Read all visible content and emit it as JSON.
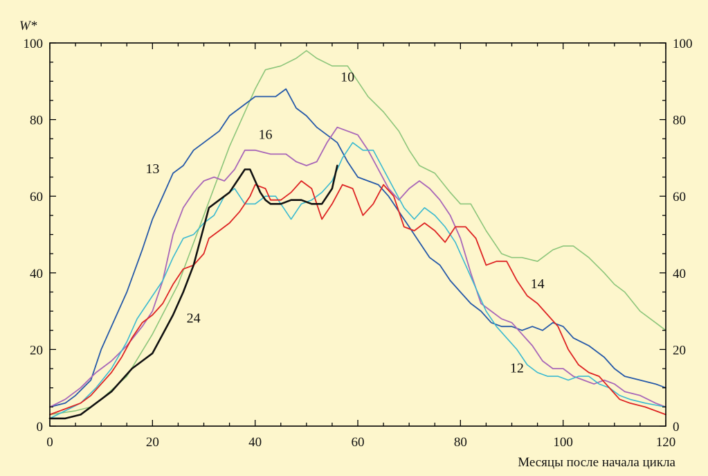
{
  "chart_data": {
    "type": "line",
    "xlabel": "Месяцы после начала цикла",
    "ylabel": "W*",
    "xlim": [
      0,
      120
    ],
    "ylim": [
      0,
      100
    ],
    "xticks": [
      0,
      20,
      40,
      60,
      80,
      100,
      120
    ],
    "yticks": [
      0,
      20,
      40,
      60,
      80,
      100
    ],
    "grid": false,
    "legend": "inline labels",
    "colors": {
      "background": "#fdf6cc",
      "axes": "#000000"
    },
    "series": [
      {
        "name": "10",
        "color": "#8cc57a",
        "width": 1.6,
        "label_at": [
          58,
          90
        ],
        "points": [
          [
            0,
            3
          ],
          [
            5,
            4
          ],
          [
            8,
            5
          ],
          [
            10,
            7
          ],
          [
            15,
            13
          ],
          [
            20,
            24
          ],
          [
            25,
            37
          ],
          [
            30,
            55
          ],
          [
            35,
            73
          ],
          [
            40,
            88
          ],
          [
            42,
            93
          ],
          [
            45,
            94
          ],
          [
            48,
            96
          ],
          [
            50,
            98
          ],
          [
            52,
            96
          ],
          [
            55,
            94
          ],
          [
            58,
            94
          ],
          [
            60,
            90
          ],
          [
            62,
            86
          ],
          [
            65,
            82
          ],
          [
            68,
            77
          ],
          [
            70,
            72
          ],
          [
            72,
            68
          ],
          [
            75,
            66
          ],
          [
            78,
            61
          ],
          [
            80,
            58
          ],
          [
            82,
            58
          ],
          [
            85,
            51
          ],
          [
            88,
            45
          ],
          [
            90,
            44
          ],
          [
            92,
            44
          ],
          [
            95,
            43
          ],
          [
            98,
            46
          ],
          [
            100,
            47
          ],
          [
            102,
            47
          ],
          [
            105,
            44
          ],
          [
            108,
            40
          ],
          [
            110,
            37
          ],
          [
            112,
            35
          ],
          [
            115,
            30
          ],
          [
            118,
            27
          ],
          [
            120,
            25
          ]
        ]
      },
      {
        "name": "13",
        "color": "#2458a8",
        "width": 1.8,
        "label_at": [
          20,
          66
        ],
        "points": [
          [
            0,
            5
          ],
          [
            3,
            6
          ],
          [
            5,
            8
          ],
          [
            8,
            12
          ],
          [
            10,
            20
          ],
          [
            12,
            26
          ],
          [
            15,
            35
          ],
          [
            18,
            46
          ],
          [
            20,
            54
          ],
          [
            22,
            60
          ],
          [
            24,
            66
          ],
          [
            26,
            68
          ],
          [
            28,
            72
          ],
          [
            30,
            74
          ],
          [
            33,
            77
          ],
          [
            35,
            81
          ],
          [
            38,
            84
          ],
          [
            40,
            86
          ],
          [
            42,
            86
          ],
          [
            44,
            86
          ],
          [
            46,
            88
          ],
          [
            48,
            83
          ],
          [
            50,
            81
          ],
          [
            52,
            78
          ],
          [
            54,
            76
          ],
          [
            56,
            74
          ],
          [
            58,
            69
          ],
          [
            60,
            65
          ],
          [
            62,
            64
          ],
          [
            64,
            63
          ],
          [
            66,
            60
          ],
          [
            68,
            56
          ],
          [
            70,
            52
          ],
          [
            72,
            48
          ],
          [
            74,
            44
          ],
          [
            76,
            42
          ],
          [
            78,
            38
          ],
          [
            80,
            35
          ],
          [
            82,
            32
          ],
          [
            84,
            30
          ],
          [
            86,
            27
          ],
          [
            88,
            26
          ],
          [
            90,
            26
          ],
          [
            92,
            25
          ],
          [
            94,
            26
          ],
          [
            96,
            25
          ],
          [
            98,
            27
          ],
          [
            100,
            26
          ],
          [
            102,
            23
          ],
          [
            105,
            21
          ],
          [
            108,
            18
          ],
          [
            110,
            15
          ],
          [
            112,
            13
          ],
          [
            115,
            12
          ],
          [
            118,
            11
          ],
          [
            120,
            10
          ]
        ]
      },
      {
        "name": "16",
        "color": "#a866b8",
        "width": 1.8,
        "label_at": [
          42,
          75
        ],
        "points": [
          [
            0,
            5
          ],
          [
            3,
            7
          ],
          [
            6,
            10
          ],
          [
            9,
            14
          ],
          [
            12,
            17
          ],
          [
            15,
            21
          ],
          [
            18,
            26
          ],
          [
            20,
            30
          ],
          [
            22,
            38
          ],
          [
            24,
            50
          ],
          [
            26,
            57
          ],
          [
            28,
            61
          ],
          [
            30,
            64
          ],
          [
            32,
            65
          ],
          [
            34,
            64
          ],
          [
            36,
            67
          ],
          [
            38,
            72
          ],
          [
            40,
            72
          ],
          [
            43,
            71
          ],
          [
            46,
            71
          ],
          [
            48,
            69
          ],
          [
            50,
            68
          ],
          [
            52,
            69
          ],
          [
            54,
            74
          ],
          [
            56,
            78
          ],
          [
            58,
            77
          ],
          [
            60,
            76
          ],
          [
            62,
            72
          ],
          [
            64,
            67
          ],
          [
            66,
            62
          ],
          [
            68,
            59
          ],
          [
            70,
            62
          ],
          [
            72,
            64
          ],
          [
            74,
            62
          ],
          [
            76,
            59
          ],
          [
            78,
            55
          ],
          [
            80,
            49
          ],
          [
            82,
            40
          ],
          [
            84,
            32
          ],
          [
            86,
            30
          ],
          [
            88,
            28
          ],
          [
            90,
            27
          ],
          [
            92,
            24
          ],
          [
            94,
            21
          ],
          [
            96,
            17
          ],
          [
            98,
            15
          ],
          [
            100,
            15
          ],
          [
            102,
            13
          ],
          [
            104,
            12
          ],
          [
            106,
            11
          ],
          [
            108,
            12
          ],
          [
            110,
            11
          ],
          [
            112,
            9
          ],
          [
            115,
            8
          ],
          [
            118,
            6
          ],
          [
            120,
            5
          ]
        ]
      },
      {
        "name": "12",
        "color": "#39b9d0",
        "width": 1.6,
        "label_at": [
          91,
          14
        ],
        "points": [
          [
            0,
            2
          ],
          [
            3,
            4
          ],
          [
            6,
            6
          ],
          [
            9,
            10
          ],
          [
            12,
            15
          ],
          [
            15,
            22
          ],
          [
            17,
            28
          ],
          [
            20,
            34
          ],
          [
            22,
            38
          ],
          [
            24,
            44
          ],
          [
            26,
            49
          ],
          [
            28,
            50
          ],
          [
            30,
            53
          ],
          [
            32,
            55
          ],
          [
            34,
            60
          ],
          [
            36,
            62
          ],
          [
            38,
            58
          ],
          [
            40,
            58
          ],
          [
            42,
            60
          ],
          [
            44,
            60
          ],
          [
            46,
            56
          ],
          [
            47,
            54
          ],
          [
            49,
            58
          ],
          [
            51,
            59
          ],
          [
            53,
            61
          ],
          [
            55,
            64
          ],
          [
            57,
            70
          ],
          [
            59,
            74
          ],
          [
            61,
            72
          ],
          [
            63,
            72
          ],
          [
            65,
            67
          ],
          [
            67,
            62
          ],
          [
            69,
            57
          ],
          [
            71,
            54
          ],
          [
            73,
            57
          ],
          [
            75,
            55
          ],
          [
            77,
            52
          ],
          [
            79,
            48
          ],
          [
            81,
            42
          ],
          [
            83,
            36
          ],
          [
            85,
            30
          ],
          [
            87,
            26
          ],
          [
            89,
            23
          ],
          [
            91,
            20
          ],
          [
            93,
            16
          ],
          [
            95,
            14
          ],
          [
            97,
            13
          ],
          [
            99,
            13
          ],
          [
            101,
            12
          ],
          [
            103,
            13
          ],
          [
            105,
            13
          ],
          [
            107,
            11
          ],
          [
            109,
            10
          ],
          [
            111,
            8
          ],
          [
            113,
            7
          ],
          [
            116,
            6
          ],
          [
            120,
            5
          ]
        ]
      },
      {
        "name": "14",
        "color": "#dd2323",
        "width": 1.8,
        "label_at": [
          95,
          36
        ],
        "points": [
          [
            0,
            3
          ],
          [
            4,
            5
          ],
          [
            6,
            6
          ],
          [
            8,
            8
          ],
          [
            10,
            11
          ],
          [
            12,
            14
          ],
          [
            14,
            18
          ],
          [
            16,
            23
          ],
          [
            18,
            27
          ],
          [
            20,
            29
          ],
          [
            22,
            32
          ],
          [
            24,
            37
          ],
          [
            26,
            41
          ],
          [
            28,
            42
          ],
          [
            30,
            45
          ],
          [
            31,
            49
          ],
          [
            33,
            51
          ],
          [
            35,
            53
          ],
          [
            37,
            56
          ],
          [
            39,
            60
          ],
          [
            40,
            63
          ],
          [
            42,
            62
          ],
          [
            43,
            59
          ],
          [
            45,
            59
          ],
          [
            47,
            61
          ],
          [
            49,
            64
          ],
          [
            51,
            62
          ],
          [
            53,
            54
          ],
          [
            55,
            58
          ],
          [
            57,
            63
          ],
          [
            59,
            62
          ],
          [
            61,
            55
          ],
          [
            63,
            58
          ],
          [
            65,
            63
          ],
          [
            67,
            60
          ],
          [
            69,
            52
          ],
          [
            71,
            51
          ],
          [
            73,
            53
          ],
          [
            75,
            51
          ],
          [
            77,
            48
          ],
          [
            79,
            52
          ],
          [
            81,
            52
          ],
          [
            83,
            49
          ],
          [
            85,
            42
          ],
          [
            87,
            43
          ],
          [
            89,
            43
          ],
          [
            91,
            38
          ],
          [
            93,
            34
          ],
          [
            95,
            32
          ],
          [
            97,
            29
          ],
          [
            99,
            26
          ],
          [
            101,
            20
          ],
          [
            103,
            16
          ],
          [
            105,
            14
          ],
          [
            107,
            13
          ],
          [
            109,
            10
          ],
          [
            111,
            7
          ],
          [
            113,
            6
          ],
          [
            116,
            5
          ],
          [
            118,
            4
          ],
          [
            120,
            3
          ]
        ]
      },
      {
        "name": "24",
        "color": "#111111",
        "width": 2.6,
        "label_at": [
          28,
          27
        ],
        "points": [
          [
            0,
            2
          ],
          [
            3,
            2
          ],
          [
            6,
            3
          ],
          [
            8,
            5
          ],
          [
            10,
            7
          ],
          [
            12,
            9
          ],
          [
            14,
            12
          ],
          [
            16,
            15
          ],
          [
            18,
            17
          ],
          [
            20,
            19
          ],
          [
            22,
            24
          ],
          [
            24,
            29
          ],
          [
            26,
            35
          ],
          [
            28,
            42
          ],
          [
            30,
            52
          ],
          [
            31,
            57
          ],
          [
            33,
            59
          ],
          [
            35,
            61
          ],
          [
            37,
            65
          ],
          [
            38,
            67
          ],
          [
            39,
            67
          ],
          [
            40,
            64
          ],
          [
            41,
            61
          ],
          [
            42,
            59
          ],
          [
            43,
            58
          ],
          [
            45,
            58
          ],
          [
            47,
            59
          ],
          [
            49,
            59
          ],
          [
            51,
            58
          ],
          [
            53,
            58
          ],
          [
            55,
            62
          ],
          [
            56,
            68
          ]
        ]
      }
    ]
  }
}
